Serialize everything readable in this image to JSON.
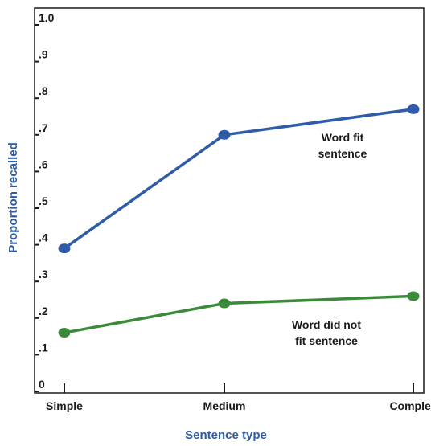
{
  "chart_data": {
    "type": "line",
    "categories": [
      "Simple",
      "Medium",
      "Complex"
    ],
    "xlabel": "Sentence type",
    "ylabel": "Proportion recalled",
    "ylim": [
      0,
      1.0
    ],
    "y_ticks": [
      0,
      0.1,
      0.2,
      0.3,
      0.4,
      0.5,
      0.6,
      0.7,
      0.8,
      0.9,
      1.0
    ],
    "y_tick_labels": [
      "0",
      ".1",
      ".2",
      ".3",
      ".4",
      ".5",
      ".6",
      ".7",
      ".8",
      ".9",
      "1.0"
    ],
    "grid": false,
    "series": [
      {
        "name_lines": [
          "Word fit",
          "sentence"
        ],
        "values": [
          0.39,
          0.7,
          0.77
        ],
        "color": "#2e5ca8"
      },
      {
        "name_lines": [
          "Word did not",
          "fit sentence"
        ],
        "values": [
          0.16,
          0.24,
          0.26
        ],
        "color": "#3a8a3a"
      }
    ],
    "axis_title_color": "#2e5ca8"
  }
}
